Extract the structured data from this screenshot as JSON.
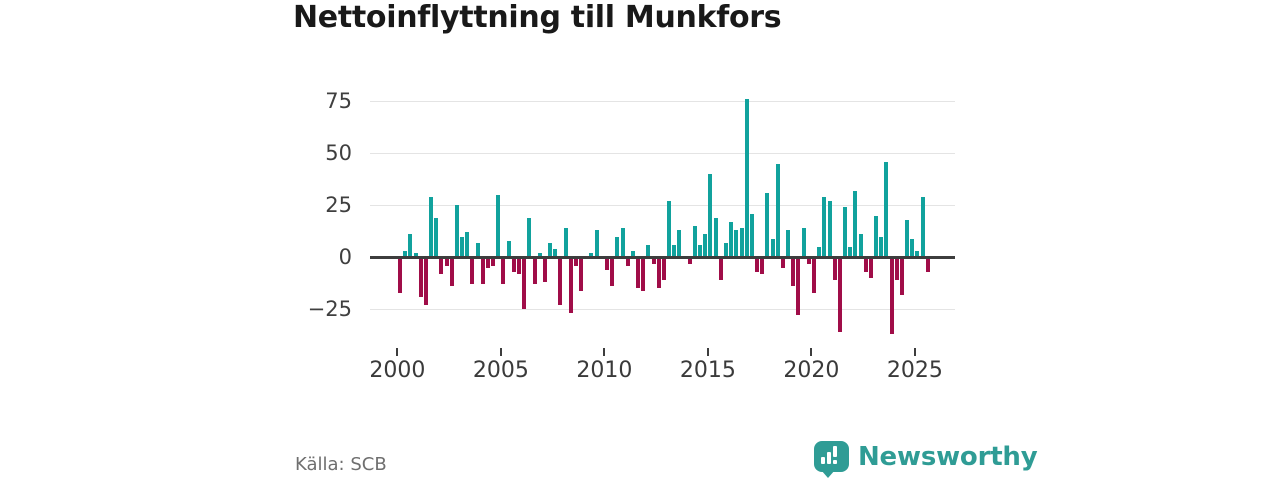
{
  "title": "Nettoinflyttning till Munkfors",
  "source": "Källa: SCB",
  "brand": {
    "name": "Newsworthy"
  },
  "chart_data": {
    "type": "bar",
    "title": "Nettoinflyttning till Munkfors",
    "x_unit": "quarter",
    "start": "2000-Q1",
    "end": "2025-Q3",
    "values": [
      -17,
      3,
      11,
      2,
      -19,
      -23,
      29,
      19,
      -8,
      -4,
      -14,
      25,
      10,
      12,
      -13,
      7,
      -13,
      -5,
      -4,
      30,
      -13,
      8,
      -7,
      -8,
      -25,
      19,
      -13,
      2,
      -12,
      7,
      4,
      -23,
      14,
      -27,
      -4,
      -16,
      0,
      2,
      13,
      0,
      -6,
      -14,
      10,
      14,
      -4,
      3,
      -15,
      -16,
      6,
      -3,
      -15,
      -11,
      27,
      6,
      13,
      0,
      -3,
      15,
      6,
      11,
      40,
      19,
      -11,
      7,
      17,
      13,
      14,
      76,
      21,
      -7,
      -8,
      31,
      9,
      45,
      -5,
      13,
      -14,
      -28,
      14,
      -3,
      -17,
      5,
      29,
      27,
      -11,
      -36,
      24,
      5,
      32,
      11,
      -7,
      -10,
      20,
      10,
      46,
      -37,
      -11,
      -18,
      18,
      9,
      3,
      29,
      -7
    ],
    "x_ticks": [
      2000,
      2005,
      2010,
      2015,
      2020,
      2025
    ],
    "y_ticks": [
      {
        "value": 75,
        "label": "75"
      },
      {
        "value": 50,
        "label": "50"
      },
      {
        "value": 25,
        "label": "25"
      },
      {
        "value": 0,
        "label": "0"
      },
      {
        "value": -25,
        "label": "−25"
      }
    ],
    "ylim": [
      -40,
      80
    ],
    "grid": true,
    "legend": false,
    "colors": {
      "positive": "#11a29d",
      "negative": "#a00d48",
      "zero_line": "#3d3d3d",
      "gridline": "#e4e4e4",
      "axis_text": "#3f3f3f"
    }
  }
}
